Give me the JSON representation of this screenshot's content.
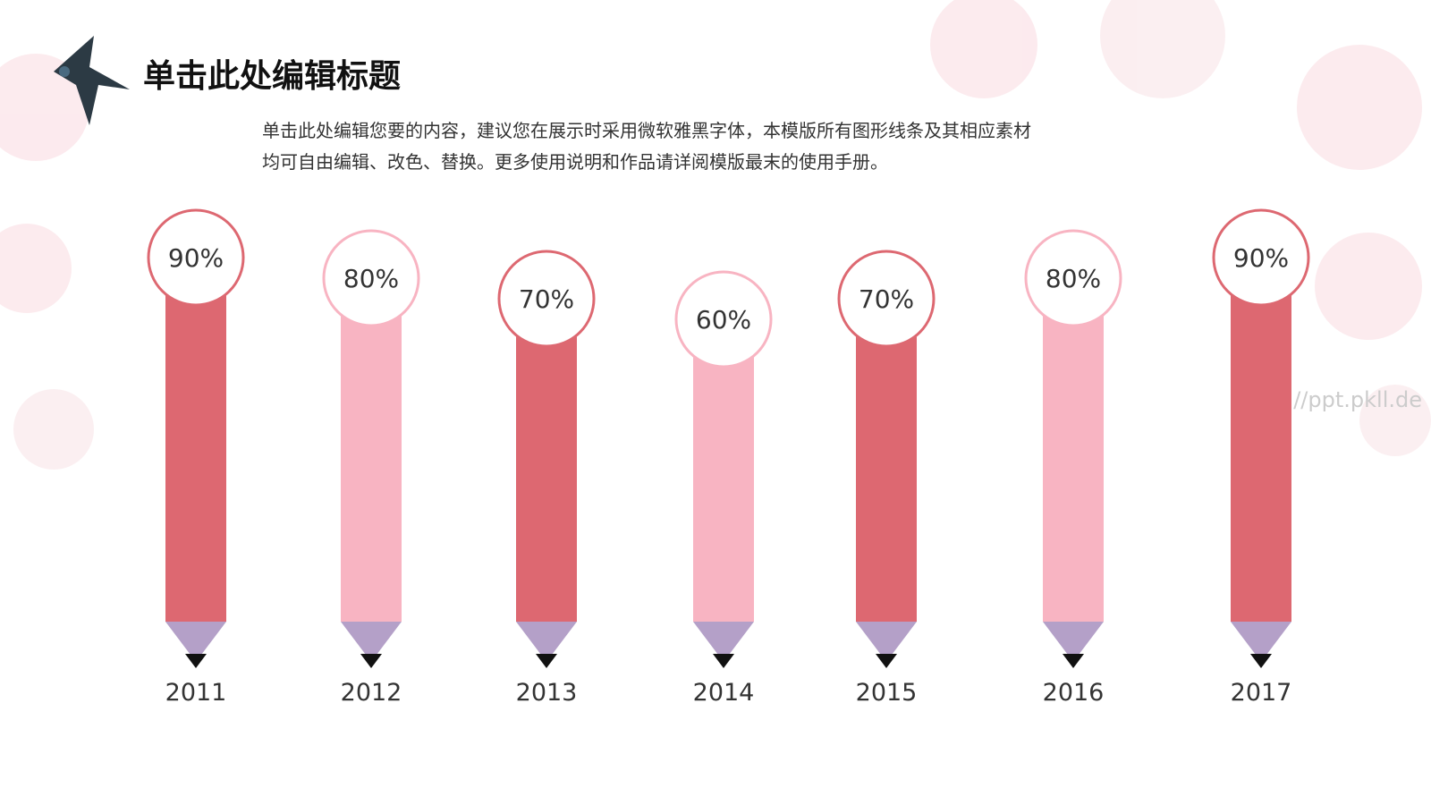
{
  "chart_data": {
    "type": "pencil-bar",
    "title": "单击此处编辑标题",
    "subtitle_lines": [
      "单击此处编辑您要的内容，建议您在展示时采用微软雅黑字体，本模版所有图形线条及其相应素材",
      "均可自由编辑、改色、替换。更多使用说明和作品请详阅模版最末的使用手册。"
    ],
    "categories": [
      "2011",
      "2012",
      "2013",
      "2014",
      "2015",
      "2016",
      "2017"
    ],
    "values": [
      90,
      80,
      70,
      60,
      70,
      80,
      90
    ],
    "value_labels": [
      "90%",
      "80%",
      "70%",
      "60%",
      "70%",
      "80%",
      "90%"
    ],
    "colors": [
      "#dd6871",
      "#f8b4c2",
      "#dd6871",
      "#f8b4c2",
      "#dd6871",
      "#f8b4c2",
      "#dd6871"
    ],
    "watermark": "https://ppt.pkll.de"
  }
}
